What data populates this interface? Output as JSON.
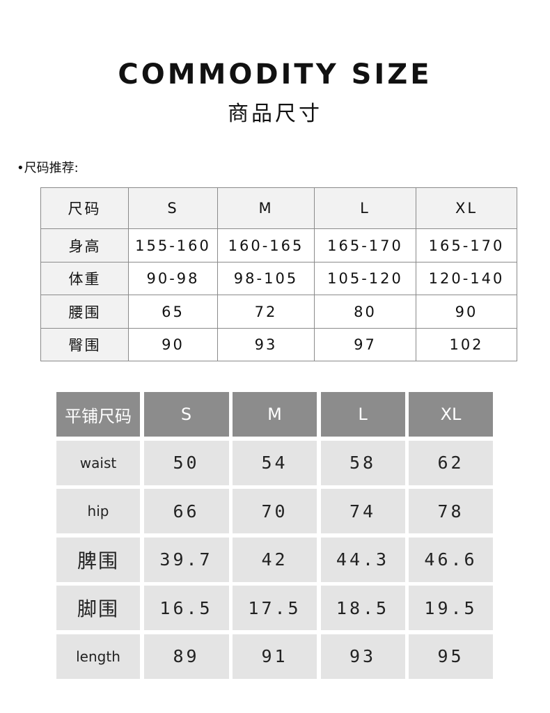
{
  "header": {
    "title": "COMMODITY SIZE",
    "subtitle": "商品尺寸"
  },
  "recommend": {
    "note": "•尺码推荐:",
    "columns": [
      "尺码",
      "S",
      "M",
      "L",
      "XL"
    ],
    "rows": [
      [
        "身高",
        "155-160",
        "160-165",
        "165-170",
        "165-170"
      ],
      [
        "体重",
        "90-98",
        "98-105",
        "105-120",
        "120-140"
      ],
      [
        "腰围",
        "65",
        "72",
        "80",
        "90"
      ],
      [
        "臀围",
        "90",
        "93",
        "97",
        "102"
      ]
    ]
  },
  "flat": {
    "columns": [
      "平铺尺码",
      "S",
      "M",
      "L",
      "XL"
    ],
    "rows": [
      [
        "waist",
        "50",
        "54",
        "58",
        "62"
      ],
      [
        "hip",
        "66",
        "70",
        "74",
        "78"
      ],
      [
        "脾围",
        "39.7",
        "42",
        "44.3",
        "46.6"
      ],
      [
        "脚围",
        "16.5",
        "17.5",
        "18.5",
        "19.5"
      ],
      [
        "length",
        "89",
        "91",
        "93",
        "95"
      ]
    ]
  },
  "colors": {
    "flat_header": "#8c8c8c",
    "flat_cell": "#e4e4e4",
    "recommend_header": "#f2f2f2"
  }
}
